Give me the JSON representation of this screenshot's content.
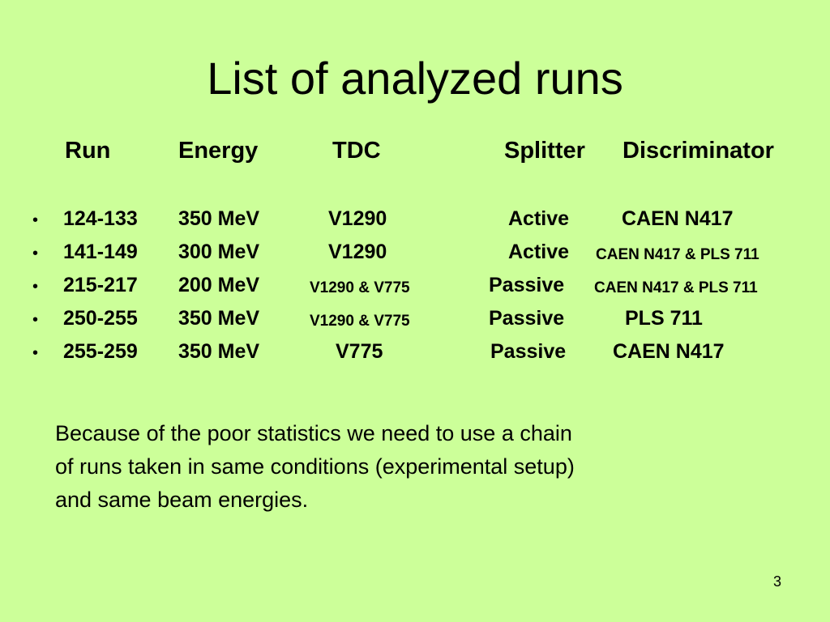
{
  "slide": {
    "title": "List of analyzed runs",
    "headers": {
      "run": "Run",
      "energy": "Energy",
      "tdc": "TDC",
      "splitter": "Splitter",
      "discriminator": "Discriminator"
    },
    "bullet_char": "•",
    "rows": [
      {
        "run": "124-133",
        "energy": "350 MeV",
        "tdc": "V1290",
        "splitter": "Active",
        "discriminator": "CAEN N417"
      },
      {
        "run": "141-149",
        "energy": "300 MeV",
        "tdc": "V1290",
        "splitter": "Active",
        "discriminator": "CAEN N417 & PLS 711"
      },
      {
        "run": "215-217",
        "energy": "200 MeV",
        "tdc": "V1290 & V775",
        "splitter": "Passive",
        "discriminator": "CAEN N417 & PLS 711"
      },
      {
        "run": "250-255",
        "energy": "350 MeV",
        "tdc": "V1290 & V775",
        "splitter": "Passive",
        "discriminator": "PLS 711"
      },
      {
        "run": "255-259",
        "energy": "350 MeV",
        "tdc": "V775",
        "splitter": "Passive",
        "discriminator": "CAEN N417"
      }
    ],
    "note_lines": [
      "Because of the poor statistics we need to use a chain",
      "of runs taken in same conditions (experimental setup)",
      "and same beam energies."
    ],
    "page_number": "3"
  }
}
